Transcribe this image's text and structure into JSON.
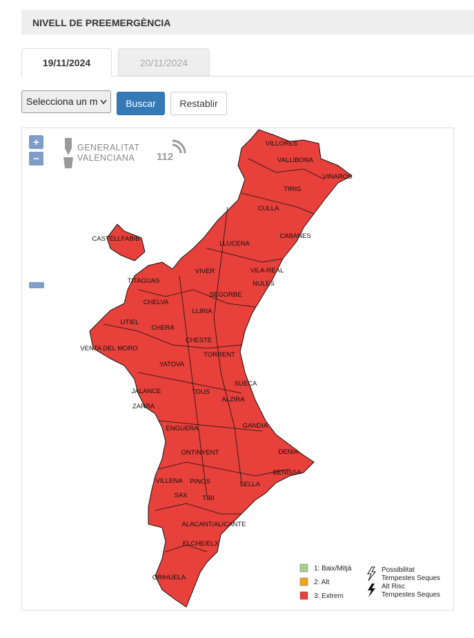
{
  "header": {
    "title": "NIVELL DE PREEMERGÈNCIA"
  },
  "tabs": [
    "19/11/2024",
    "20/11/2024"
  ],
  "controls": {
    "select": "Selecciona un m",
    "search": "Buscar",
    "reset": "Restablir"
  },
  "map": {
    "zoom_in": "+",
    "zoom_out": "−",
    "logo_lines": [
      "GENERALITAT",
      "VALENCIANA"
    ],
    "logo_112": "112",
    "places": [
      "VILLORES",
      "VALLIBONA",
      "VINAROS",
      "TIRIG",
      "CULLA",
      "CASTELLFABIB",
      "CABANES",
      "LLUCENA",
      "VILA-REAL",
      "NULES",
      "TITAGUAS",
      "VIVER",
      "SEGORBE",
      "CHELVA",
      "LLIRIA",
      "UTIEL",
      "CHERA",
      "CHESTE",
      "VENTA DEL MORO",
      "TORRENT",
      "YATOVA",
      "SUECA",
      "JALANCE",
      "TOUS",
      "ALZIRA",
      "ZARRA",
      "GANDIA",
      "ENGUERA",
      "DENIA",
      "ONTINYENT",
      "BENISSA",
      "VILLENA",
      "PINOS",
      "SELLA",
      "SAX",
      "TIBI",
      "ALACANT/ALICANTE",
      "ELCHE/ELX",
      "ORIHUELA"
    ],
    "legend": {
      "levels": [
        "1: Baix/Mitjà",
        "2: Alt",
        "3: Extrem"
      ],
      "storms": [
        [
          "Possibilitat",
          "Tempestes Seques"
        ],
        [
          "Alt Risc",
          "Tempestes Seques"
        ]
      ]
    }
  }
}
